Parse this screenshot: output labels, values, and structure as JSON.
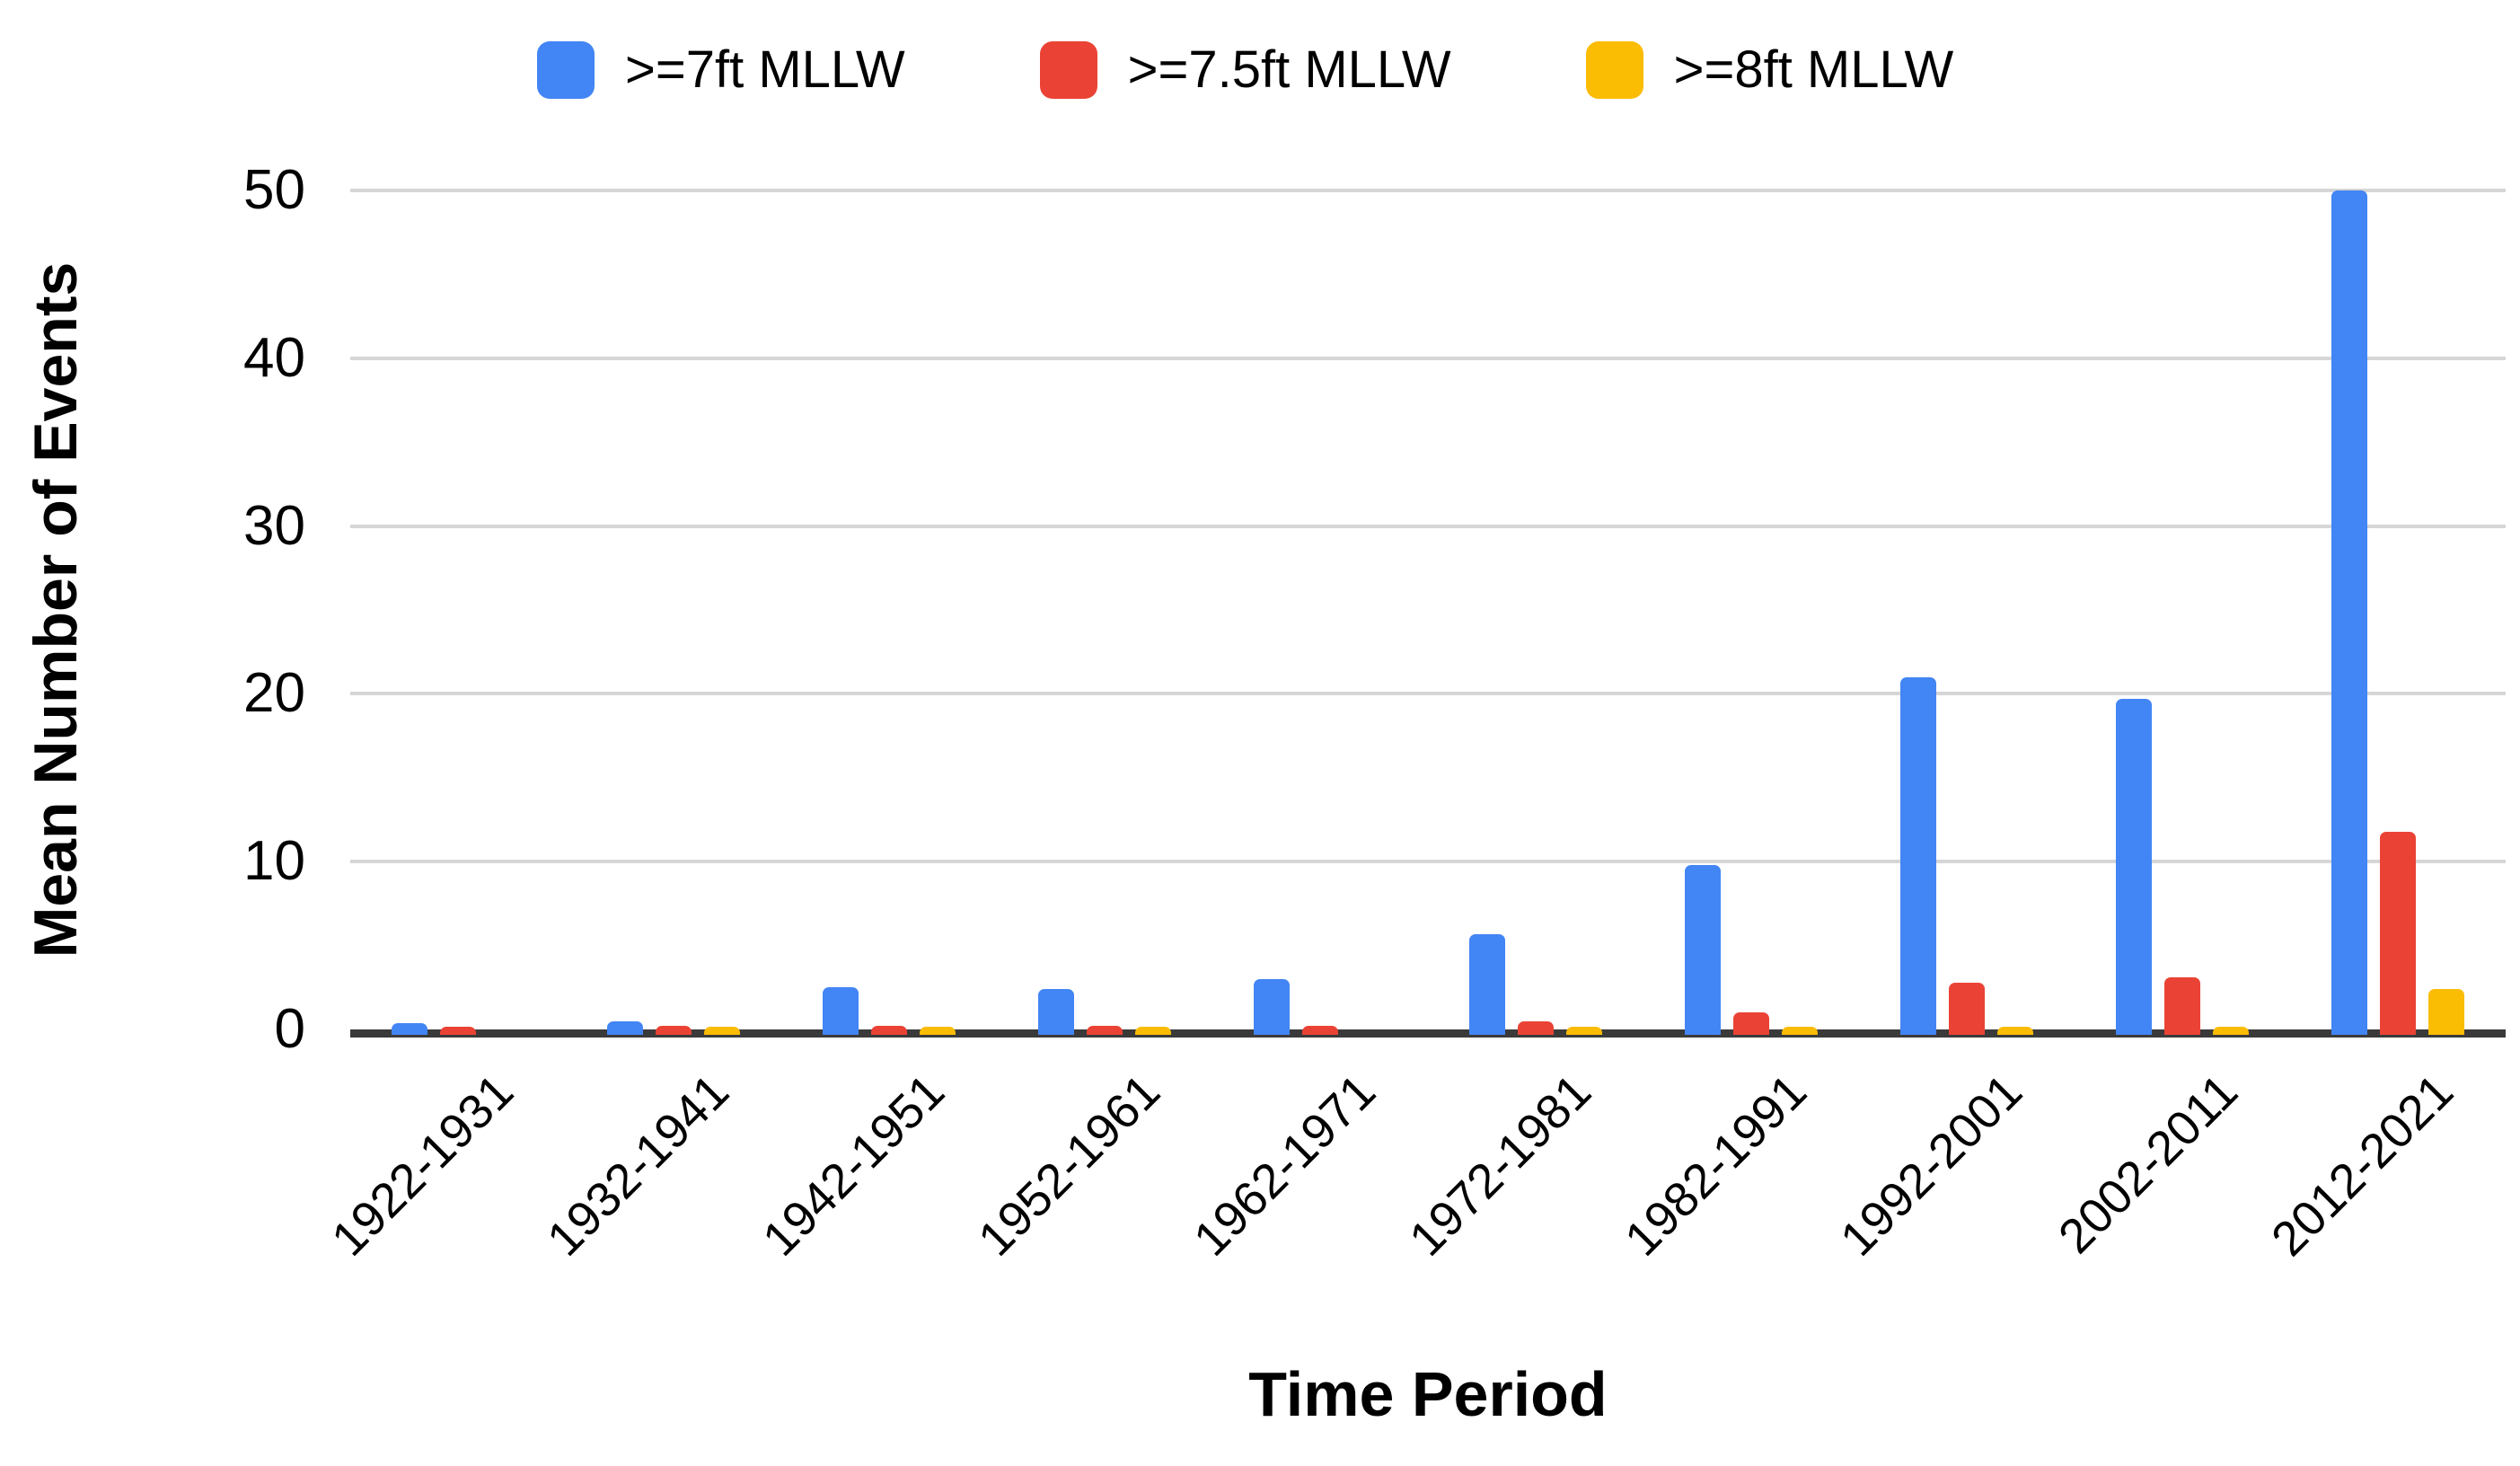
{
  "chart_data": {
    "type": "bar",
    "title": "",
    "xlabel": "Time Period",
    "ylabel": "Mean Number of Events",
    "categories": [
      "1922-1931",
      "1932-1941",
      "1942-1951",
      "1952-1961",
      "1962-1971",
      "1972-1981",
      "1982-1991",
      "1992-2001",
      "2002-2011",
      "2012-2021"
    ],
    "series": [
      {
        "name": ">=7ft MLLW",
        "color": "#4285F4",
        "values": [
          0.4,
          0.5,
          2.5,
          2.4,
          3.0,
          5.7,
          9.8,
          21.0,
          19.7,
          50.0
        ]
      },
      {
        "name": ">=7.5ft MLLW",
        "color": "#EA4335",
        "values": [
          0.15,
          0.2,
          0.2,
          0.2,
          0.2,
          0.5,
          1.0,
          2.8,
          3.1,
          11.8
        ]
      },
      {
        "name": ">=8ft MLLW",
        "color": "#FBBC04",
        "values": [
          0,
          0.15,
          0.15,
          0.15,
          0,
          0.15,
          0.15,
          0.15,
          0.15,
          2.4
        ]
      }
    ],
    "ylim": [
      0,
      50
    ],
    "yticks": [
      0,
      10,
      20,
      30,
      40,
      50
    ],
    "grid": "horizontal",
    "legend_position": "top"
  },
  "colors": {
    "background": "#ffffff",
    "gridline": "#d6d6d6",
    "axis_line": "#3a3a3a",
    "text": "#000000"
  }
}
